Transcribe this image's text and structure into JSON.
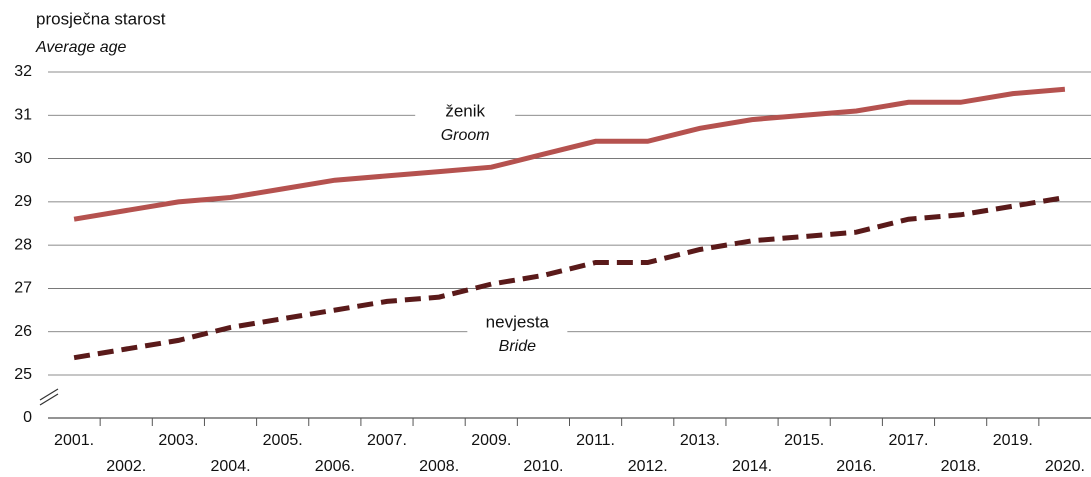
{
  "chart_data": {
    "type": "line",
    "title": "prosječna starost",
    "subtitle": "Average age",
    "categories": [
      "2001.",
      "2002.",
      "2003.",
      "2004.",
      "2005.",
      "2006.",
      "2007.",
      "2008.",
      "2009.",
      "2010.",
      "2011.",
      "2012.",
      "2013.",
      "2014.",
      "2015.",
      "2016.",
      "2017.",
      "2018.",
      "2019.",
      "2020."
    ],
    "series": [
      {
        "name": "ženik",
        "name_en": "Groom",
        "color": "#b5524f",
        "dash": false,
        "values": [
          28.6,
          28.8,
          29.0,
          29.1,
          29.3,
          29.5,
          29.6,
          29.7,
          29.8,
          30.1,
          30.4,
          30.4,
          30.7,
          30.9,
          31.0,
          31.1,
          31.3,
          31.3,
          31.5,
          31.6
        ]
      },
      {
        "name": "nevjesta",
        "name_en": "Bride",
        "color": "#5a1a1a",
        "dash": true,
        "values": [
          25.4,
          25.6,
          25.8,
          26.1,
          26.3,
          26.5,
          26.7,
          26.8,
          27.1,
          27.3,
          27.6,
          27.6,
          27.9,
          28.1,
          28.2,
          28.3,
          28.6,
          28.7,
          28.9,
          29.1
        ]
      }
    ],
    "ylim": [
      25,
      32
    ],
    "yticks": [
      0,
      25,
      26,
      27,
      28,
      29,
      30,
      31,
      32
    ],
    "axis_break": true,
    "grid": true
  }
}
